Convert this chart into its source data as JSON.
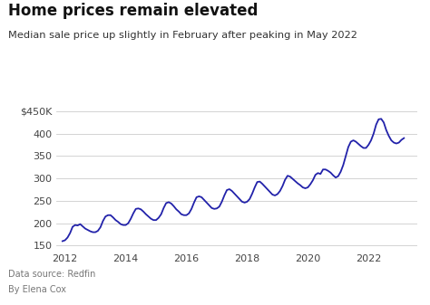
{
  "title": "Home prices remain elevated",
  "subtitle": "Median sale price up slightly in February after peaking in May 2022",
  "footer1": "Data source: Redfin",
  "footer2": "By Elena Cox",
  "bg_color": "#ffffff",
  "line_color": "#2222aa",
  "line_width": 1.3,
  "ylim": [
    140000,
    460000
  ],
  "yticks": [
    150000,
    200000,
    250000,
    300000,
    350000,
    400000,
    450000
  ],
  "ytick_labels": [
    "150",
    "200",
    "250",
    "300",
    "350",
    "400",
    "$450K"
  ],
  "xticks": [
    2012,
    2014,
    2016,
    2018,
    2020,
    2022
  ],
  "xlim_left": 2011.7,
  "xlim_right": 2023.6,
  "data": {
    "dates": [
      2011.917,
      2012.0,
      2012.083,
      2012.167,
      2012.25,
      2012.333,
      2012.417,
      2012.5,
      2012.583,
      2012.667,
      2012.75,
      2012.833,
      2012.917,
      2013.0,
      2013.083,
      2013.167,
      2013.25,
      2013.333,
      2013.417,
      2013.5,
      2013.583,
      2013.667,
      2013.75,
      2013.833,
      2013.917,
      2014.0,
      2014.083,
      2014.167,
      2014.25,
      2014.333,
      2014.417,
      2014.5,
      2014.583,
      2014.667,
      2014.75,
      2014.833,
      2014.917,
      2015.0,
      2015.083,
      2015.167,
      2015.25,
      2015.333,
      2015.417,
      2015.5,
      2015.583,
      2015.667,
      2015.75,
      2015.833,
      2015.917,
      2016.0,
      2016.083,
      2016.167,
      2016.25,
      2016.333,
      2016.417,
      2016.5,
      2016.583,
      2016.667,
      2016.75,
      2016.833,
      2016.917,
      2017.0,
      2017.083,
      2017.167,
      2017.25,
      2017.333,
      2017.417,
      2017.5,
      2017.583,
      2017.667,
      2017.75,
      2017.833,
      2017.917,
      2018.0,
      2018.083,
      2018.167,
      2018.25,
      2018.333,
      2018.417,
      2018.5,
      2018.583,
      2018.667,
      2018.75,
      2018.833,
      2018.917,
      2019.0,
      2019.083,
      2019.167,
      2019.25,
      2019.333,
      2019.417,
      2019.5,
      2019.583,
      2019.667,
      2019.75,
      2019.833,
      2019.917,
      2020.0,
      2020.083,
      2020.167,
      2020.25,
      2020.333,
      2020.417,
      2020.5,
      2020.583,
      2020.667,
      2020.75,
      2020.833,
      2020.917,
      2021.0,
      2021.083,
      2021.167,
      2021.25,
      2021.333,
      2021.417,
      2021.5,
      2021.583,
      2021.667,
      2021.75,
      2021.833,
      2021.917,
      2022.0,
      2022.083,
      2022.167,
      2022.25,
      2022.333,
      2022.417,
      2022.5,
      2022.583,
      2022.667,
      2022.75,
      2022.833,
      2022.917,
      2023.0,
      2023.083,
      2023.167
    ],
    "values": [
      160000,
      162000,
      168000,
      178000,
      192000,
      196000,
      195000,
      198000,
      193000,
      188000,
      185000,
      182000,
      180000,
      180000,
      183000,
      191000,
      205000,
      215000,
      218000,
      218000,
      213000,
      207000,
      203000,
      198000,
      196000,
      196000,
      200000,
      210000,
      222000,
      232000,
      233000,
      231000,
      226000,
      220000,
      215000,
      210000,
      207000,
      207000,
      212000,
      220000,
      234000,
      245000,
      247000,
      244000,
      238000,
      231000,
      226000,
      220000,
      218000,
      218000,
      222000,
      232000,
      246000,
      258000,
      260000,
      258000,
      252000,
      246000,
      240000,
      234000,
      232000,
      233000,
      237000,
      248000,
      262000,
      274000,
      276000,
      272000,
      266000,
      260000,
      254000,
      248000,
      246000,
      248000,
      254000,
      266000,
      280000,
      292000,
      293000,
      288000,
      282000,
      276000,
      270000,
      264000,
      262000,
      265000,
      272000,
      283000,
      297000,
      306000,
      304000,
      299000,
      294000,
      289000,
      285000,
      280000,
      278000,
      280000,
      287000,
      296000,
      308000,
      312000,
      310000,
      320000,
      320000,
      317000,
      313000,
      307000,
      302000,
      305000,
      315000,
      330000,
      350000,
      370000,
      382000,
      385000,
      382000,
      377000,
      372000,
      368000,
      368000,
      375000,
      385000,
      400000,
      420000,
      432000,
      433000,
      425000,
      408000,
      395000,
      385000,
      380000,
      378000,
      380000,
      386000,
      390000
    ]
  }
}
